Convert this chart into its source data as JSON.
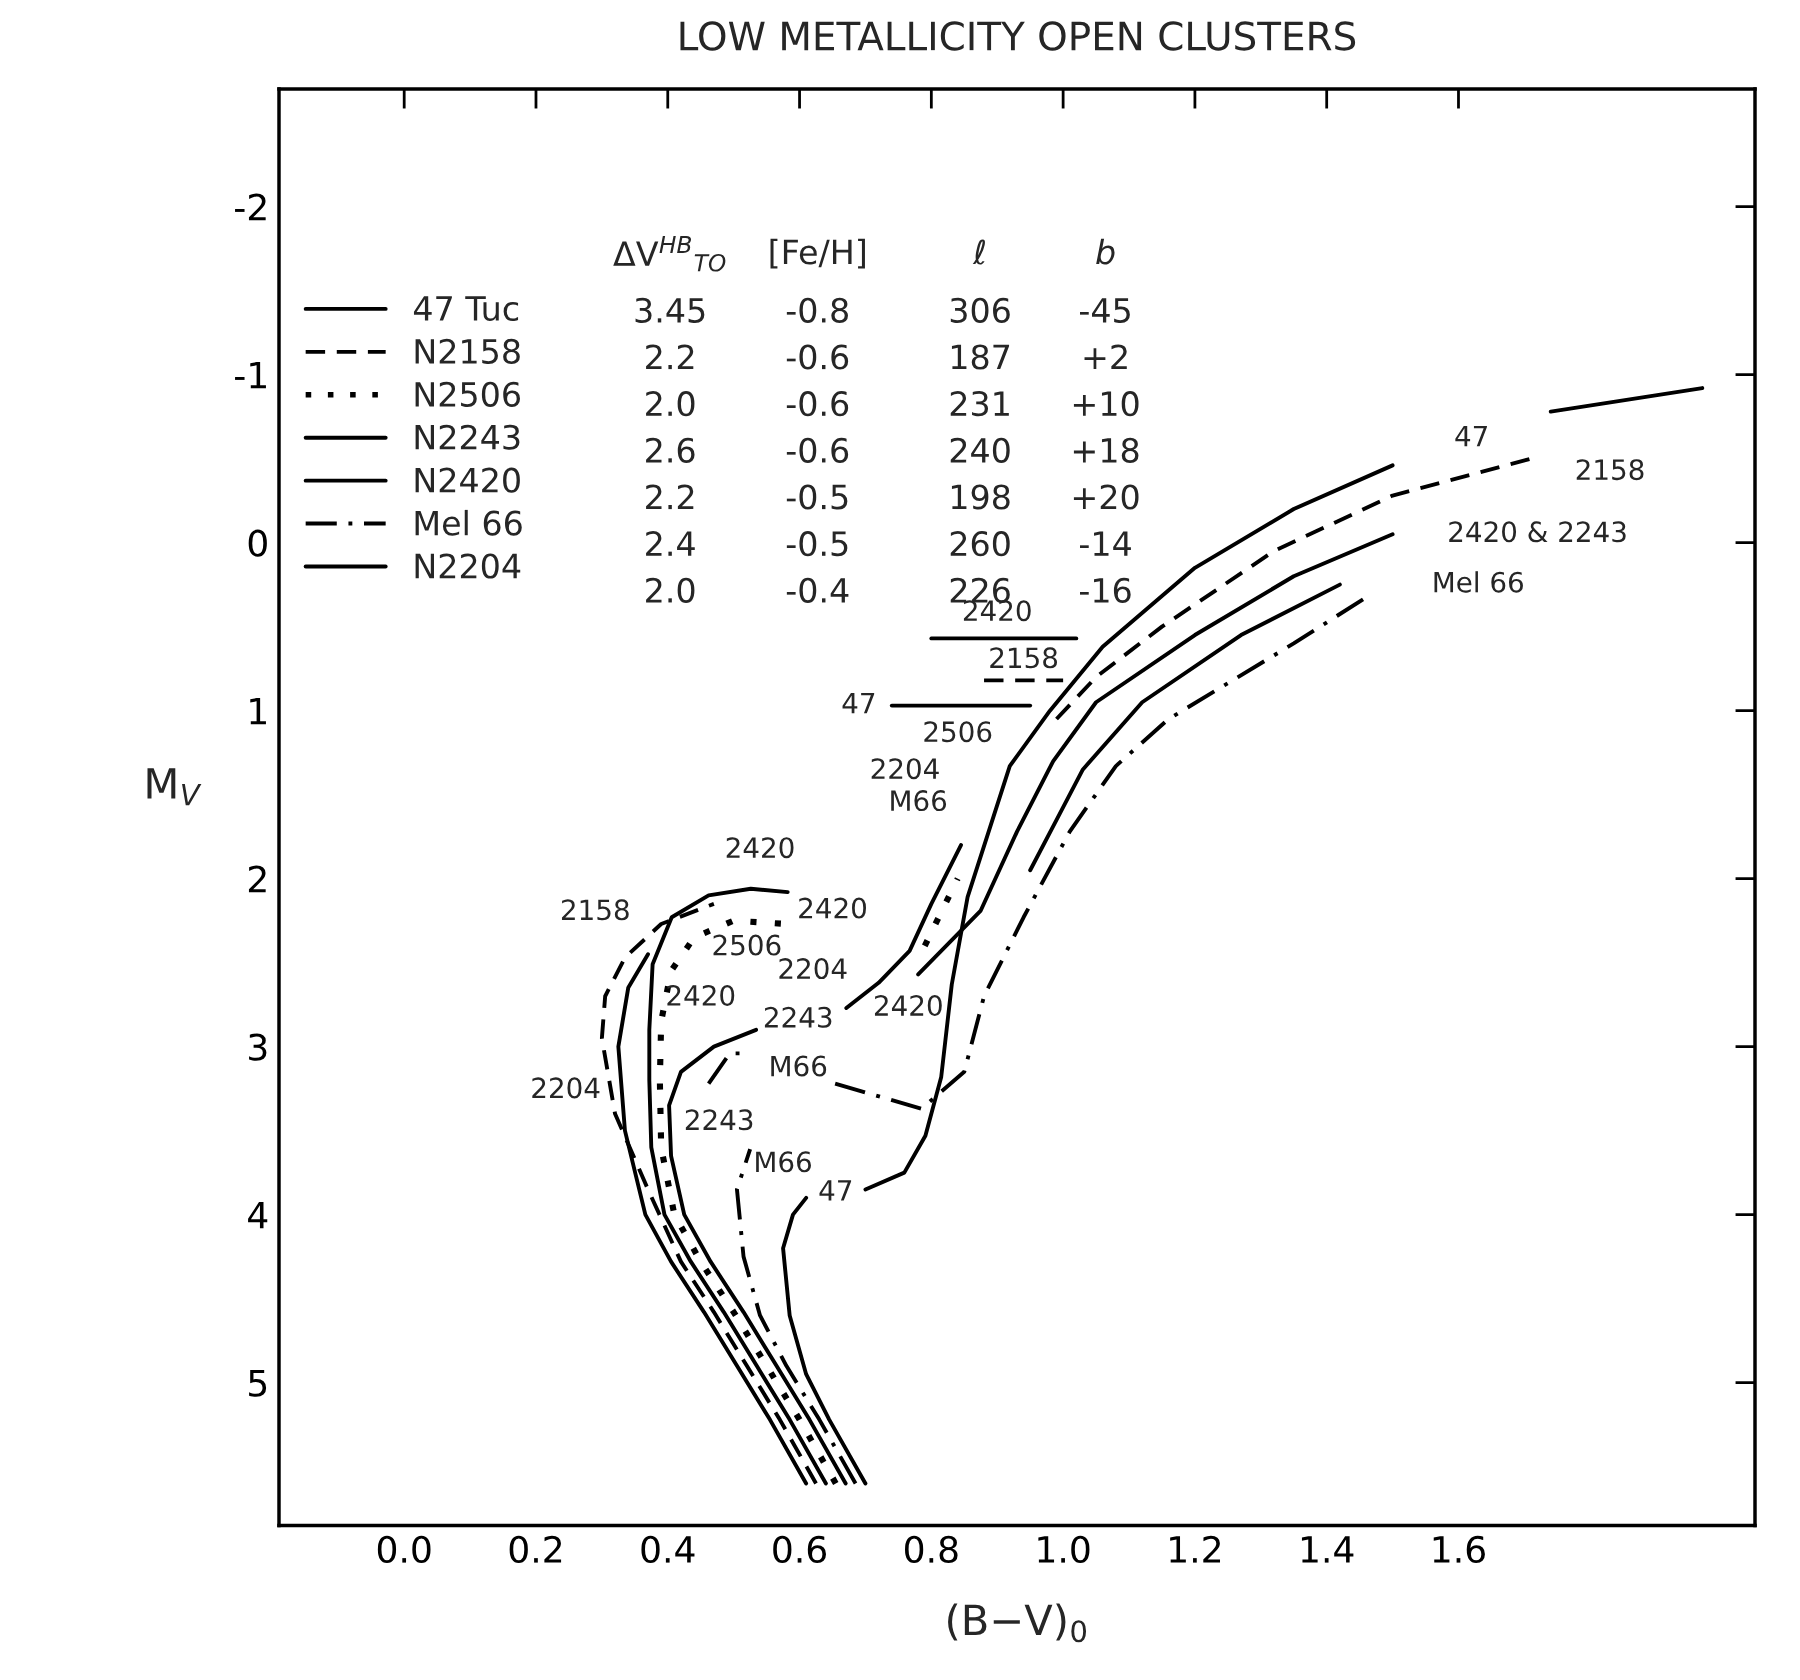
{
  "chart_data": {
    "type": "line",
    "title": "LOW METALLICITY OPEN CLUSTERS",
    "xlabel": "(B−V)$_{0}$",
    "ylabel": "M$_{V}$",
    "xlim": [
      -0.19,
      2.05
    ],
    "ylim": [
      5.85,
      -2.7
    ],
    "xticks": [
      {
        "value": 0.0,
        "label": "0.0"
      },
      {
        "value": 0.2,
        "label": "0.2"
      },
      {
        "value": 0.4,
        "label": "0.4"
      },
      {
        "value": 0.6,
        "label": "0.6"
      },
      {
        "value": 0.8,
        "label": "0.8"
      },
      {
        "value": 1.0,
        "label": "1.0"
      },
      {
        "value": 1.2,
        "label": "1.2"
      },
      {
        "value": 1.4,
        "label": "1.4"
      },
      {
        "value": 1.6,
        "label": "1.6"
      }
    ],
    "yticks": [
      -2,
      -1,
      0,
      1,
      2,
      3,
      4,
      5
    ],
    "legend": "top left",
    "series": [
      {
        "name": "47 Tuc",
        "color": "#000000",
        "line_style": "solid",
        "x": [
          0.7,
          0.645,
          0.61,
          0.585,
          0.575,
          0.59,
          0.61,
          null,
          0.7,
          0.759,
          0.791,
          0.815,
          0.831,
          0.855,
          0.887,
          0.919,
          0.98,
          1.06,
          1.2,
          1.35,
          1.5,
          null,
          1.74,
          1.97
        ],
        "values": [
          5.6,
          5.22,
          4.95,
          4.6,
          4.2,
          4.0,
          3.9,
          null,
          3.85,
          3.75,
          3.53,
          3.18,
          2.63,
          2.11,
          1.72,
          1.33,
          1.0,
          0.62,
          0.15,
          -0.2,
          -0.46,
          null,
          -0.78,
          -0.92
        ]
      },
      {
        "name": "N2158",
        "color": "#000000",
        "line_style": "dashed",
        "x": [
          0.625,
          0.57,
          0.52,
          0.47,
          0.42,
          0.37,
          0.32,
          0.3,
          0.305,
          0.335,
          0.39,
          0.47,
          null,
          0.99,
          1.05,
          1.15,
          1.32,
          1.5,
          1.71
        ],
        "values": [
          5.6,
          5.22,
          4.9,
          4.58,
          4.28,
          3.85,
          3.4,
          2.95,
          2.7,
          2.47,
          2.27,
          2.15,
          null,
          1.05,
          0.8,
          0.5,
          0.05,
          -0.28,
          -0.5
        ]
      },
      {
        "name": "N2506",
        "color": "#000000",
        "line_style": "dotted",
        "x": [
          0.655,
          0.6,
          0.55,
          0.5,
          0.45,
          0.41,
          0.39,
          0.388,
          0.39,
          0.405,
          0.44,
          0.5,
          0.58,
          null,
          0.79,
          0.815,
          0.84
        ],
        "values": [
          5.6,
          5.22,
          4.9,
          4.58,
          4.28,
          4.0,
          3.6,
          3.2,
          2.85,
          2.55,
          2.35,
          2.25,
          2.27,
          null,
          2.4,
          2.2,
          2.0
        ]
      },
      {
        "name": "N2243",
        "color": "#000000",
        "line_style": "solid",
        "x": [
          0.67,
          0.615,
          0.565,
          0.515,
          0.465,
          0.425,
          0.405,
          0.402,
          0.42,
          0.47,
          0.534,
          null,
          0.95,
          0.99,
          1.03,
          1.12,
          1.27,
          1.42
        ],
        "values": [
          5.6,
          5.22,
          4.9,
          4.58,
          4.28,
          4.0,
          3.65,
          3.35,
          3.15,
          3.0,
          2.9,
          null,
          1.95,
          1.65,
          1.35,
          0.95,
          0.55,
          0.25
        ]
      },
      {
        "name": "N2420",
        "color": "#000000",
        "line_style": "solid",
        "x": [
          0.64,
          0.585,
          0.535,
          0.485,
          0.435,
          0.395,
          0.375,
          0.372,
          0.372,
          0.377,
          0.406,
          0.462,
          0.526,
          0.582,
          null,
          0.78,
          0.875,
          0.93,
          0.985,
          1.05,
          1.2,
          1.35,
          1.5
        ],
        "values": [
          5.6,
          5.22,
          4.9,
          4.58,
          4.28,
          4.0,
          3.6,
          3.2,
          2.9,
          2.51,
          2.23,
          2.1,
          2.06,
          2.08,
          null,
          2.57,
          2.19,
          1.72,
          1.3,
          0.95,
          0.55,
          0.2,
          -0.05
        ]
      },
      {
        "name": "Mel 66",
        "color": "#000000",
        "line_style": "dashdot",
        "x": [
          0.685,
          0.63,
          0.58,
          0.54,
          0.515,
          0.505,
          0.525,
          null,
          0.462,
          0.494,
          0.526,
          null,
          0.654,
          0.785,
          0.85,
          0.88,
          0.94,
          1.01,
          1.08,
          1.16,
          1.35,
          1.47
        ],
        "values": [
          5.6,
          5.22,
          4.9,
          4.6,
          4.25,
          3.85,
          3.61,
          null,
          3.22,
          3.04,
          3.04,
          null,
          3.22,
          3.37,
          3.15,
          2.7,
          2.23,
          1.72,
          1.33,
          1.05,
          0.6,
          0.3
        ]
      },
      {
        "name": "N2204",
        "color": "#000000",
        "line_style": "solid",
        "x": [
          0.61,
          0.555,
          0.505,
          0.455,
          0.405,
          0.366,
          0.335,
          0.325,
          0.34,
          0.37,
          null,
          0.671,
          0.72,
          0.767,
          0.8,
          0.845
        ],
        "values": [
          5.6,
          5.22,
          4.9,
          4.58,
          4.28,
          4.0,
          3.5,
          3.0,
          2.65,
          2.45,
          null,
          2.77,
          2.62,
          2.43,
          2.15,
          1.8
        ]
      },
      {
        "color": "#000000",
        "line_style": "solid",
        "x": [
          0.8,
          1.02
        ],
        "values": [
          0.57,
          0.57
        ]
      },
      {
        "color": "#000000",
        "line_style": "dashed",
        "x": [
          0.88,
          1.0
        ],
        "values": [
          0.82,
          0.82
        ]
      },
      {
        "color": "#000000",
        "line_style": "solid",
        "x": [
          0.74,
          0.95
        ],
        "values": [
          0.97,
          0.97
        ]
      }
    ],
    "annotations": [
      "ΔV$^{HB}$$_{TO}$",
      "[Fe/H]",
      "ℓ",
      "b",
      "3.45",
      "-0.8",
      "306",
      "-45",
      "2.2",
      "-0.6",
      "187",
      "+2",
      "2.0",
      "-0.6",
      "231",
      "+10",
      "2.6",
      "-0.6",
      "240",
      "+18",
      "2.2",
      "-0.5",
      "198",
      "+20",
      "2.4",
      "-0.5",
      "260",
      "-14",
      "2.0",
      "-0.4",
      "226",
      "-16",
      "47",
      "2158",
      "2420 & 2243",
      "Mel 66",
      "2420",
      "2158",
      "47",
      "2506",
      "2204",
      "M66",
      "2420",
      "2158",
      "2506",
      "2420",
      "2204",
      "2420",
      "2243",
      "M66",
      "2204",
      "2243",
      "M66",
      "47",
      "2420"
    ]
  }
}
